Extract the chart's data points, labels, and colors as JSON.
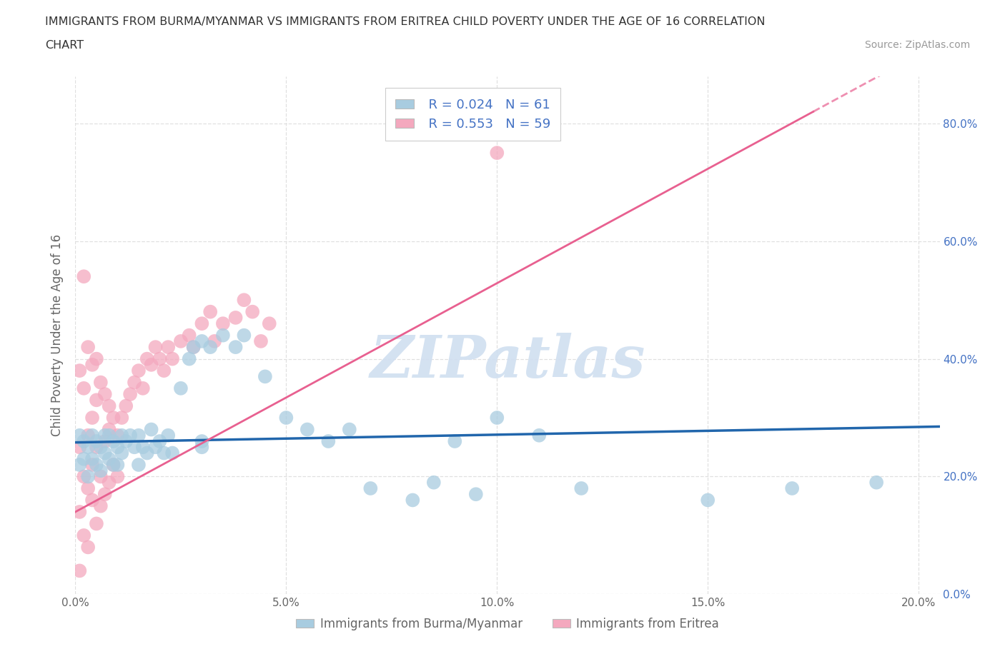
{
  "title_line1": "IMMIGRANTS FROM BURMA/MYANMAR VS IMMIGRANTS FROM ERITREA CHILD POVERTY UNDER THE AGE OF 16 CORRELATION",
  "title_line2": "CHART",
  "source_text": "Source: ZipAtlas.com",
  "ylabel": "Child Poverty Under the Age of 16",
  "xlim": [
    0.0,
    0.205
  ],
  "ylim": [
    0.0,
    0.88
  ],
  "xticks": [
    0.0,
    0.05,
    0.1,
    0.15,
    0.2
  ],
  "xtick_labels": [
    "0.0%",
    "5.0%",
    "10.0%",
    "15.0%",
    "20.0%"
  ],
  "yticks": [
    0.0,
    0.2,
    0.4,
    0.6,
    0.8
  ],
  "ytick_labels": [
    "0.0%",
    "20.0%",
    "40.0%",
    "60.0%",
    "80.0%"
  ],
  "legend_r1": "R = 0.024",
  "legend_n1": "N = 61",
  "legend_r2": "R = 0.553",
  "legend_n2": "N = 59",
  "color_blue": "#a8cce0",
  "color_pink": "#f4a8be",
  "color_blue_line": "#2166ac",
  "color_pink_line": "#e86090",
  "watermark_color": "#d0dff0",
  "background_color": "#ffffff",
  "grid_color": "#e0e0e0",
  "blue_scatter_x": [
    0.001,
    0.001,
    0.002,
    0.002,
    0.003,
    0.003,
    0.004,
    0.004,
    0.005,
    0.005,
    0.006,
    0.006,
    0.007,
    0.007,
    0.008,
    0.008,
    0.009,
    0.009,
    0.01,
    0.01,
    0.011,
    0.011,
    0.012,
    0.013,
    0.014,
    0.015,
    0.015,
    0.016,
    0.017,
    0.018,
    0.019,
    0.02,
    0.021,
    0.022,
    0.023,
    0.025,
    0.027,
    0.028,
    0.03,
    0.03,
    0.032,
    0.035,
    0.038,
    0.04,
    0.045,
    0.05,
    0.055,
    0.06,
    0.065,
    0.07,
    0.08,
    0.085,
    0.09,
    0.095,
    0.1,
    0.11,
    0.12,
    0.15,
    0.17,
    0.19,
    0.03
  ],
  "blue_scatter_y": [
    0.27,
    0.22,
    0.26,
    0.23,
    0.25,
    0.2,
    0.27,
    0.23,
    0.26,
    0.22,
    0.25,
    0.21,
    0.27,
    0.24,
    0.27,
    0.23,
    0.26,
    0.22,
    0.25,
    0.22,
    0.27,
    0.24,
    0.26,
    0.27,
    0.25,
    0.27,
    0.22,
    0.25,
    0.24,
    0.28,
    0.25,
    0.26,
    0.24,
    0.27,
    0.24,
    0.35,
    0.4,
    0.42,
    0.43,
    0.26,
    0.42,
    0.44,
    0.42,
    0.44,
    0.37,
    0.3,
    0.28,
    0.26,
    0.28,
    0.18,
    0.16,
    0.19,
    0.26,
    0.17,
    0.3,
    0.27,
    0.18,
    0.16,
    0.18,
    0.19,
    0.25
  ],
  "pink_scatter_x": [
    0.001,
    0.001,
    0.002,
    0.002,
    0.003,
    0.003,
    0.004,
    0.004,
    0.005,
    0.005,
    0.006,
    0.006,
    0.007,
    0.007,
    0.008,
    0.008,
    0.009,
    0.01,
    0.01,
    0.011,
    0.012,
    0.013,
    0.014,
    0.015,
    0.016,
    0.017,
    0.018,
    0.019,
    0.02,
    0.021,
    0.022,
    0.023,
    0.025,
    0.027,
    0.028,
    0.03,
    0.032,
    0.033,
    0.035,
    0.038,
    0.04,
    0.042,
    0.044,
    0.046,
    0.002,
    0.003,
    0.004,
    0.005,
    0.006,
    0.007,
    0.008,
    0.009,
    0.001,
    0.002,
    0.003,
    0.004,
    0.005,
    0.1,
    0.001
  ],
  "pink_scatter_y": [
    0.25,
    0.14,
    0.2,
    0.1,
    0.18,
    0.08,
    0.22,
    0.16,
    0.25,
    0.12,
    0.2,
    0.15,
    0.26,
    0.17,
    0.28,
    0.19,
    0.22,
    0.27,
    0.2,
    0.3,
    0.32,
    0.34,
    0.36,
    0.38,
    0.35,
    0.4,
    0.39,
    0.42,
    0.4,
    0.38,
    0.42,
    0.4,
    0.43,
    0.44,
    0.42,
    0.46,
    0.48,
    0.43,
    0.46,
    0.47,
    0.5,
    0.48,
    0.43,
    0.46,
    0.54,
    0.27,
    0.3,
    0.33,
    0.36,
    0.34,
    0.32,
    0.3,
    0.38,
    0.35,
    0.42,
    0.39,
    0.4,
    0.75,
    0.04
  ],
  "blue_trend_x": [
    0.0,
    0.205
  ],
  "blue_trend_y": [
    0.258,
    0.285
  ],
  "pink_trend_x": [
    0.0,
    0.175
  ],
  "pink_trend_y": [
    0.14,
    0.82
  ]
}
